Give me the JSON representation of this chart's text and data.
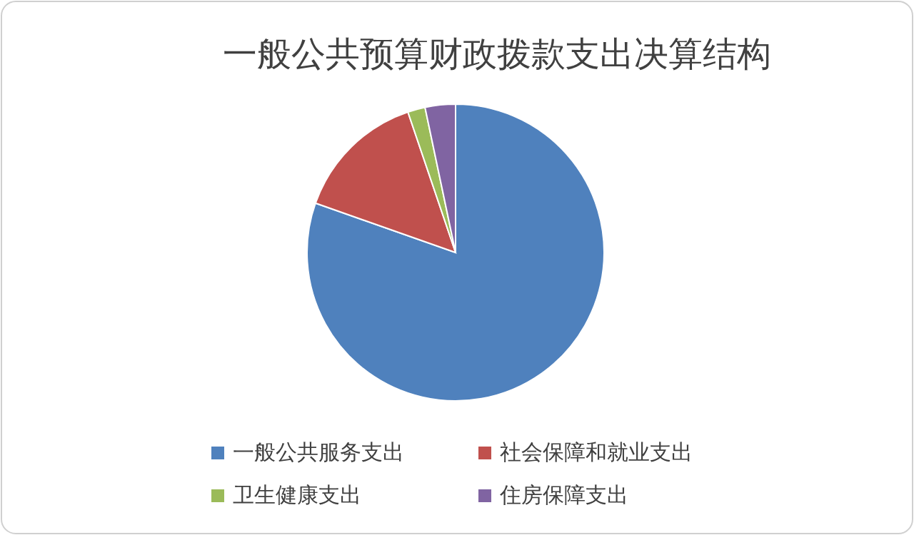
{
  "chart_data": {
    "type": "pie",
    "title": "一般公共预算财政拨款支出决算结构",
    "categories": [
      "一般公共服务支出",
      "社会保障和就业支出",
      "卫生健康支出",
      "住房保障支出"
    ],
    "values": [
      80.4,
      14.4,
      1.9,
      3.3
    ],
    "colors": [
      "#4f81bd",
      "#c0504d",
      "#9bbb59",
      "#8064a2"
    ],
    "legend": "bottom"
  }
}
